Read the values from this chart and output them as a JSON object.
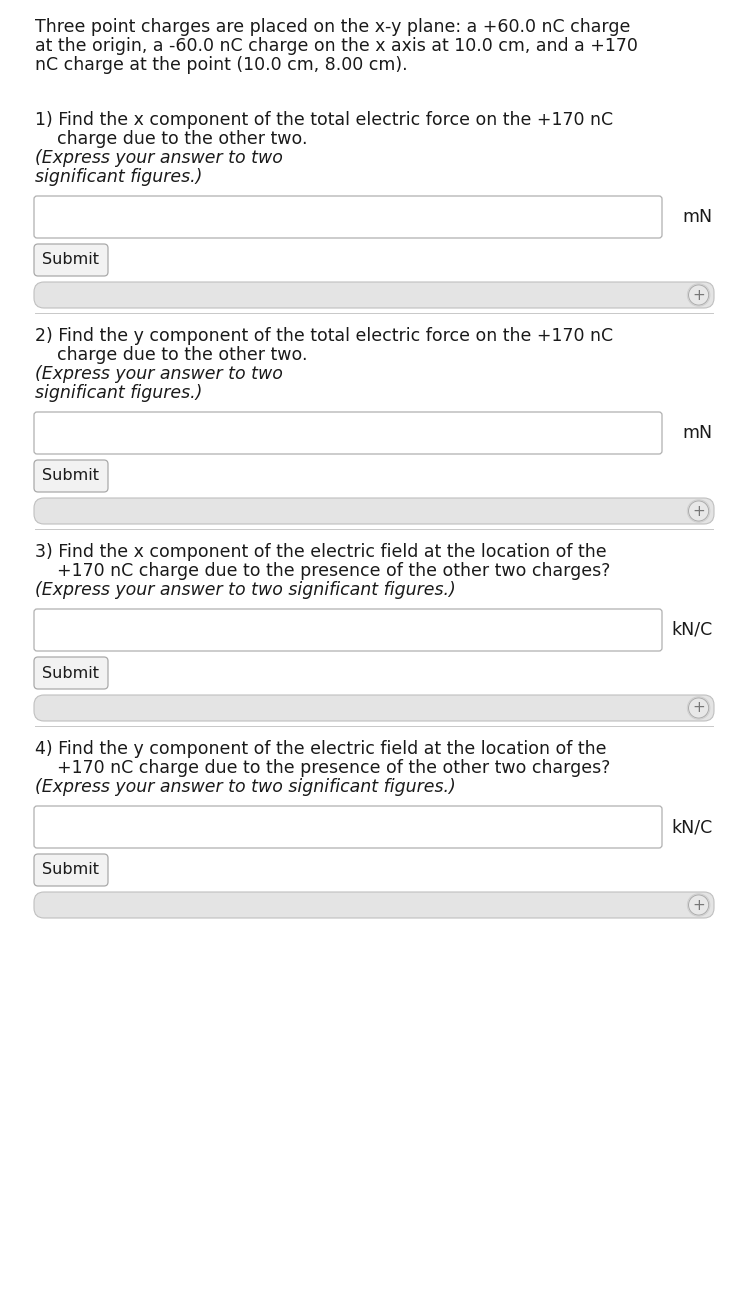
{
  "background_color": "#ffffff",
  "text_color": "#1a1a1a",
  "gray_text_color": "#333333",
  "intro_lines": [
    "Three point charges are placed on the x-y plane: a +60.0 nC charge",
    "at the origin, a -60.0 nC charge on the x axis at 10.0 cm, and a +170",
    "nC charge at the point (10.0 cm, 8.00 cm)."
  ],
  "questions": [
    {
      "lines_normal": [
        "1) Find the x component of the total electric force on the +170 nC",
        "    charge due to the other two. "
      ],
      "lines_italic": [
        "(Express your answer to two",
        "significant figures.)"
      ],
      "unit": "mN"
    },
    {
      "lines_normal": [
        "2) Find the y component of the total electric force on the +170 nC",
        "    charge due to the other two. "
      ],
      "lines_italic": [
        "(Express your answer to two",
        "significant figures.)"
      ],
      "unit": "mN"
    },
    {
      "lines_normal": [
        "3) Find the x component of the electric field at the location of the",
        "    +170 nC charge due to the presence of the other two charges?"
      ],
      "lines_italic": [
        "(Express your answer to two significant figures.)"
      ],
      "unit": "kN/C"
    },
    {
      "lines_normal": [
        "4) Find the y component of the electric field at the location of the",
        "    +170 nC charge due to the presence of the other two charges?"
      ],
      "lines_italic": [
        "(Express your answer to two significant figures.)"
      ],
      "unit": "kN/C"
    }
  ],
  "submit_label": "Submit",
  "input_box_color": "#ffffff",
  "input_border_color": "#b0b0b0",
  "submit_box_color": "#f2f2f2",
  "submit_border_color": "#aaaaaa",
  "expand_bar_color": "#e4e4e4",
  "expand_bar_border_color": "#c0c0c0",
  "section_divider_color": "#c8c8c8",
  "plus_color": "#777777",
  "font_size": 12.5,
  "font_size_submit": 11.5,
  "font_size_unit": 12.5,
  "font_size_plus": 11
}
